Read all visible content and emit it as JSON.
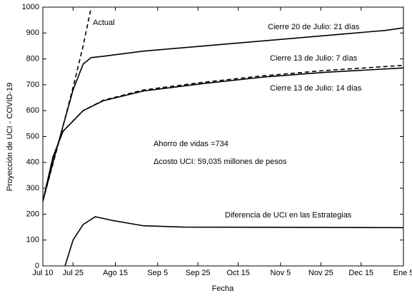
{
  "chart_data": {
    "type": "line",
    "xlabel": "Fecha",
    "ylabel": "Proyección de UCI - COVID-19",
    "xlim": [
      0,
      179
    ],
    "xticks": [
      {
        "value": 0,
        "label": "Jul 10"
      },
      {
        "value": 15,
        "label": "Jul 25"
      },
      {
        "value": 36,
        "label": "Ago 15"
      },
      {
        "value": 57,
        "label": "Sep 5"
      },
      {
        "value": 77,
        "label": "Sep 25"
      },
      {
        "value": 97,
        "label": "Oct 15"
      },
      {
        "value": 118,
        "label": "Nov 5"
      },
      {
        "value": 138,
        "label": "Nov 25"
      },
      {
        "value": 158,
        "label": "Dec 15"
      },
      {
        "value": 179,
        "label": "Ene 5"
      }
    ],
    "ylim": [
      0,
      1000
    ],
    "yticks": [
      0,
      100,
      200,
      300,
      400,
      500,
      600,
      700,
      800,
      900,
      1000
    ],
    "grid": false,
    "series": [
      {
        "name": "Actual",
        "color": "#000000",
        "dashed": true,
        "x": [
          0,
          8,
          15,
          20,
          24
        ],
        "values": [
          250,
          480,
          690,
          850,
          1000
        ]
      },
      {
        "name": "Cierre 20 de Julio: 21 días",
        "color": "#000000",
        "dashed": false,
        "x": [
          0,
          5,
          10,
          15,
          20,
          24,
          30,
          50,
          80,
          110,
          140,
          170,
          179
        ],
        "values": [
          250,
          400,
          540,
          680,
          780,
          805,
          810,
          830,
          850,
          870,
          890,
          910,
          920
        ]
      },
      {
        "name": "Cierre 13 de Julio: 7 días",
        "color": "#000000",
        "dashed": true,
        "x": [
          0,
          5,
          10,
          20,
          30,
          50,
          80,
          110,
          140,
          179
        ],
        "values": [
          250,
          420,
          520,
          600,
          640,
          680,
          710,
          735,
          755,
          775
        ]
      },
      {
        "name": "Cierre 13 de Julio: 14 días",
        "color": "#000000",
        "dashed": false,
        "x": [
          0,
          5,
          10,
          20,
          30,
          50,
          80,
          110,
          140,
          179
        ],
        "values": [
          250,
          420,
          520,
          600,
          638,
          676,
          705,
          730,
          748,
          765
        ]
      },
      {
        "name": "Diferencia de UCI en las Estrategias",
        "color": "#000000",
        "dashed": false,
        "x": [
          11,
          15,
          20,
          26,
          35,
          50,
          70,
          179
        ],
        "values": [
          0,
          100,
          160,
          190,
          175,
          155,
          150,
          148
        ]
      }
    ],
    "annotations": [
      "Ahorro de vidas =734",
      "Δcosto UCI: 59,035 millones de pesos"
    ]
  }
}
